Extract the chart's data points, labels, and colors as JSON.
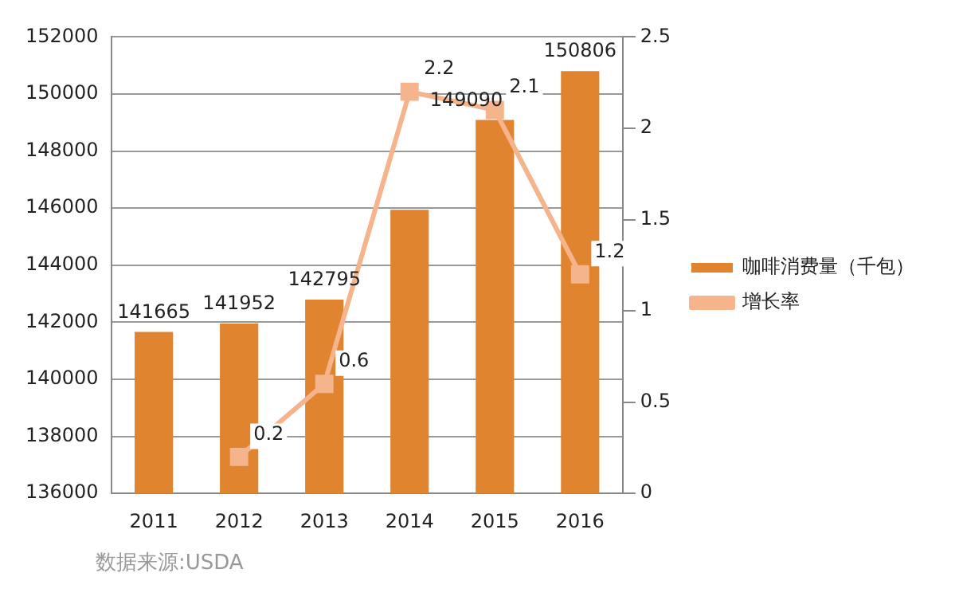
{
  "chart_data": {
    "type": "bar",
    "categories": [
      "2011",
      "2012",
      "2013",
      "2014",
      "2015",
      "2016"
    ],
    "series": [
      {
        "name": "咖啡消费量（千包）",
        "color": "#e08430",
        "values": [
          141665,
          141952,
          142795,
          145940,
          149090,
          150806
        ],
        "value_labels": [
          "141665",
          "141952",
          "142795",
          null,
          "149090",
          "150806"
        ]
      },
      {
        "name": "增长率",
        "type": "line",
        "axis": "y2",
        "color": "#f5b48c",
        "marker": "square",
        "values": [
          null,
          0.2,
          0.6,
          2.2,
          2.1,
          1.2
        ],
        "value_labels": [
          null,
          "0.2",
          "0.6",
          "2.2",
          "2.1",
          "1.2"
        ]
      }
    ],
    "ylim": [
      136000,
      152000
    ],
    "yticks": [
      136000,
      138000,
      140000,
      142000,
      144000,
      146000,
      148000,
      150000,
      152000
    ],
    "y2lim": [
      0,
      2.5
    ],
    "y2ticks": [
      0,
      0.5,
      1,
      1.5,
      2,
      2.5
    ],
    "grid": "y",
    "legend": "right",
    "annotations": [
      "数据来源:USDA"
    ]
  }
}
